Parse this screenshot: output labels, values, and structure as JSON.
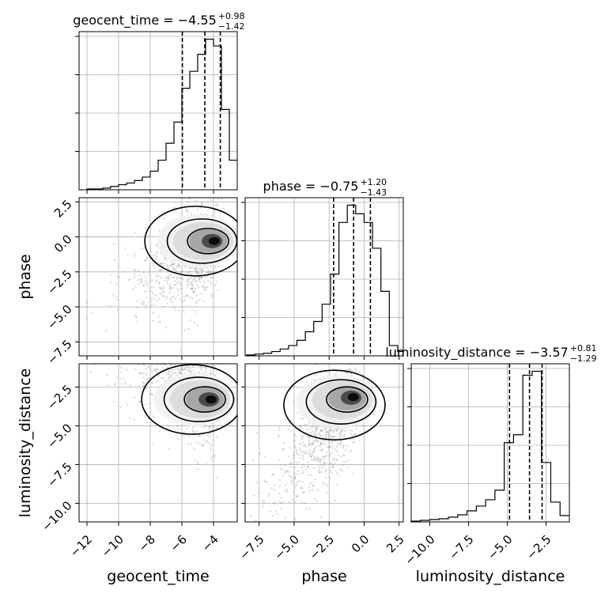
{
  "chart_data": {
    "type": "corner",
    "parameters": [
      "geocent_time",
      "phase",
      "luminosity_distance"
    ],
    "axes": {
      "geocent_time": {
        "range": [
          -12.5,
          -2.5
        ],
        "ticks": [
          -12,
          -10,
          -8,
          -6,
          -4
        ],
        "tick_labels": [
          "−12",
          "−10",
          "−8",
          "−6",
          "−4"
        ]
      },
      "phase": {
        "range": [
          -8.5,
          2.8
        ],
        "ticks": [
          -7.5,
          -5.0,
          -2.5,
          0.0,
          2.5
        ],
        "tick_labels": [
          "−7.5",
          "−5.0",
          "−2.5",
          "0.0",
          "2.5"
        ]
      },
      "luminosity_distance": {
        "range": [
          -11.2,
          -1.0
        ],
        "ticks": [
          -10.0,
          -7.5,
          -5.0,
          -2.5
        ],
        "tick_labels": [
          "−10.0",
          "−7.5",
          "−5.0",
          "−2.5"
        ]
      }
    },
    "titles": [
      {
        "param": "geocent_time",
        "main": "geocent_time = −4.55",
        "sup": "+0.98",
        "sub": "−1.42"
      },
      {
        "param": "phase",
        "main": "phase = −0.75",
        "sup": "+1.20",
        "sub": "−1.43"
      },
      {
        "param": "luminosity_distance",
        "main": "luminosity_distance = −3.57",
        "sup": "+0.81",
        "sub": "−1.29"
      }
    ],
    "quantiles": {
      "geocent_time": [
        -5.97,
        -4.55,
        -3.57
      ],
      "phase": [
        -2.18,
        -0.75,
        0.45
      ],
      "luminosity_distance": [
        -4.86,
        -3.57,
        -2.76
      ]
    },
    "histograms": {
      "geocent_time": {
        "edges": [
          -12.0,
          -11.5,
          -11.0,
          -10.5,
          -10.0,
          -9.5,
          -9.0,
          -8.5,
          -8.0,
          -7.5,
          -7.0,
          -6.5,
          -6.0,
          -5.5,
          -5.0,
          -4.5,
          -4.0,
          -3.5,
          -3.0,
          -2.5
        ],
        "counts": [
          1,
          1,
          2,
          4,
          6,
          8,
          11,
          15,
          22,
          35,
          55,
          80,
          120,
          140,
          160,
          178,
          170,
          95,
          35
        ]
      },
      "phase": {
        "edges": [
          -8.4,
          -7.8,
          -7.2,
          -6.6,
          -6.0,
          -5.4,
          -4.8,
          -4.2,
          -3.6,
          -3.0,
          -2.4,
          -1.8,
          -1.2,
          -0.6,
          0.0,
          0.6,
          1.2,
          1.8,
          2.4,
          2.8
        ],
        "counts": [
          1,
          2,
          3,
          5,
          8,
          12,
          18,
          28,
          40,
          60,
          95,
          155,
          175,
          165,
          155,
          125,
          75,
          12,
          5
        ]
      },
      "luminosity_distance": {
        "edges": [
          -11.2,
          -10.6,
          -10.0,
          -9.4,
          -8.8,
          -8.2,
          -7.6,
          -7.0,
          -6.4,
          -5.8,
          -5.2,
          -4.6,
          -4.0,
          -3.4,
          -2.8,
          -2.2,
          -1.6,
          -1.0
        ],
        "counts": [
          1,
          2,
          3,
          4,
          6,
          9,
          14,
          20,
          28,
          40,
          100,
          110,
          185,
          190,
          75,
          25,
          8
        ]
      }
    },
    "contours_2d": {
      "phase_vs_geocent_time": {
        "peak": [
          -3.8,
          -0.3
        ],
        "levels": 3
      },
      "luminosity_distance_vs_geocent_time": {
        "peak": [
          -4.0,
          -3.3
        ],
        "levels": 3
      },
      "luminosity_distance_vs_phase": {
        "peak": [
          -0.6,
          -3.1
        ],
        "levels": 3
      }
    },
    "grid": true
  }
}
